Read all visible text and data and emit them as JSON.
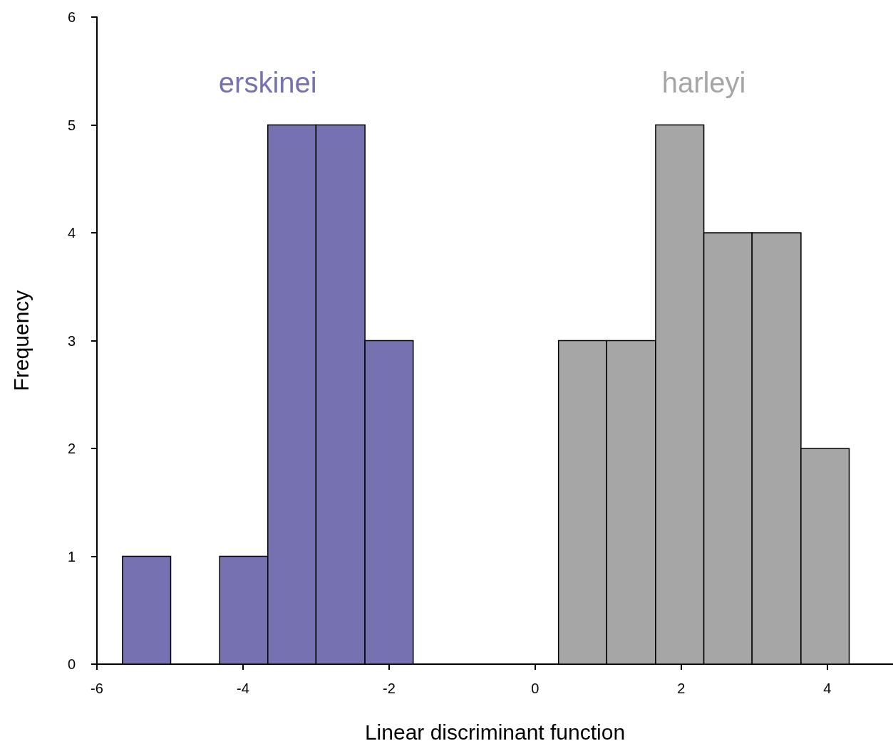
{
  "chart_data": {
    "type": "histogram",
    "xlabel": "Linear discriminant function",
    "ylabel": "Frequency",
    "bins": [
      -5.65,
      -4.99,
      -4.32,
      -3.66,
      -3.0,
      -2.33,
      -1.67,
      0.32,
      0.98,
      1.65,
      2.31,
      2.97,
      3.64,
      4.3
    ],
    "series": [
      {
        "name": "erskinei",
        "color": "#7672b2",
        "values": [
          1,
          0,
          1,
          5,
          5,
          3,
          null,
          null,
          null,
          null,
          null,
          null,
          null
        ]
      },
      {
        "name": "harleyi",
        "color": "#a6a6a6",
        "values": [
          null,
          null,
          null,
          null,
          null,
          null,
          null,
          3,
          3,
          5,
          4,
          4,
          2
        ]
      }
    ],
    "xlim": [
      -6,
      4.9
    ],
    "xticks": [
      -6,
      -4,
      -2,
      0,
      2,
      4
    ],
    "ylim": [
      0,
      6
    ],
    "yticks": [
      0,
      1,
      2,
      3,
      4,
      5,
      6
    ],
    "grid": false,
    "legend": false
  }
}
